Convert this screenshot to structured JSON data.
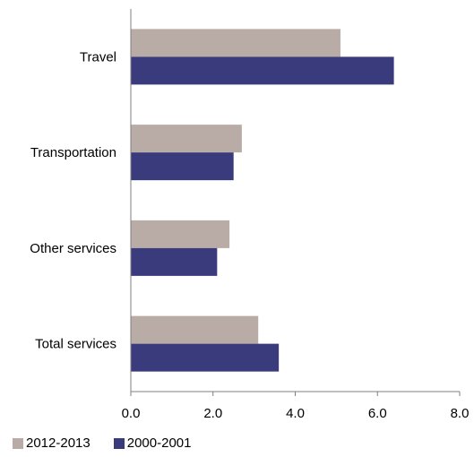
{
  "chart_data": {
    "type": "bar",
    "orientation": "horizontal",
    "categories": [
      "Travel",
      "Transportation",
      "Other services",
      "Total services"
    ],
    "series": [
      {
        "name": "2012-2013",
        "color": "#b9aba5",
        "values": [
          5.1,
          2.7,
          2.4,
          3.1
        ]
      },
      {
        "name": "2000-2001",
        "color": "#3a3b7c",
        "values": [
          6.4,
          2.5,
          2.1,
          3.6
        ]
      }
    ],
    "xlim": [
      0,
      8
    ],
    "xticks": [
      "0.0",
      "2.0",
      "4.0",
      "6.0",
      "8.0"
    ],
    "grid": false,
    "legend_position": "bottom-left"
  }
}
